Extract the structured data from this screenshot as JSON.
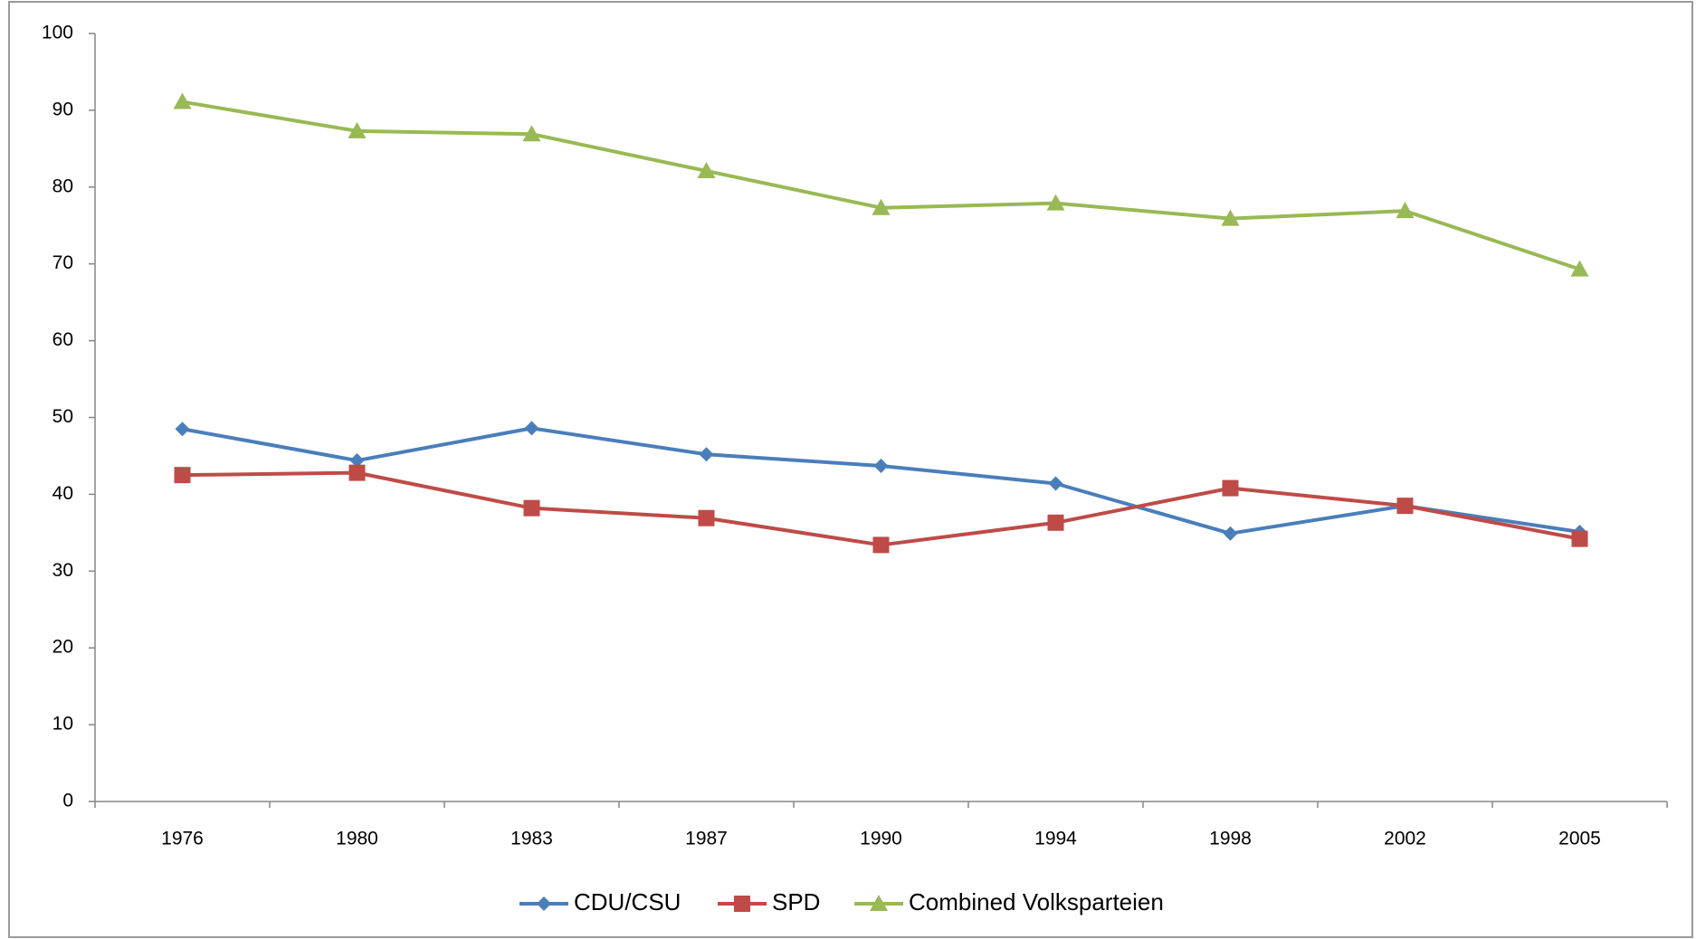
{
  "chart_data": {
    "type": "line",
    "categories": [
      "1976",
      "1980",
      "1983",
      "1987",
      "1990",
      "1994",
      "1998",
      "2002",
      "2005"
    ],
    "series": [
      {
        "name": "CDU/CSU",
        "color": "#4a7ebb",
        "marker": "diamond",
        "values": [
          48.5,
          44.4,
          48.6,
          45.2,
          43.7,
          41.4,
          34.9,
          38.5,
          35.1
        ]
      },
      {
        "name": "SPD",
        "color": "#be4b48",
        "marker": "square",
        "values": [
          42.5,
          42.8,
          38.2,
          36.9,
          33.4,
          36.3,
          40.8,
          38.5,
          34.2
        ]
      },
      {
        "name": "Combined Volksparteien",
        "color": "#98b954",
        "marker": "triangle",
        "values": [
          91.1,
          87.3,
          86.9,
          82.1,
          77.3,
          77.9,
          75.9,
          76.9,
          69.3
        ]
      }
    ],
    "ylim": [
      0,
      100
    ],
    "yticks": [
      0,
      10,
      20,
      30,
      40,
      50,
      60,
      70,
      80,
      90,
      100
    ],
    "grid": false,
    "legend": "bottom"
  }
}
